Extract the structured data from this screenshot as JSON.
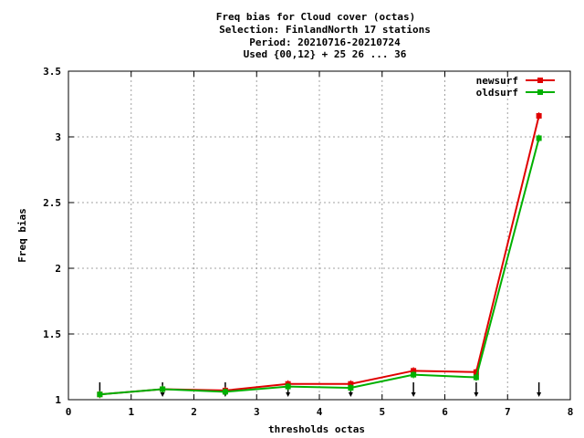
{
  "chart_data": {
    "type": "line",
    "title_lines": [
      "Freq bias  for Cloud cover (octas)",
      "Selection: FinlandNorth     17 stations",
      "Period: 20210716-20210724",
      "Used {00,12} + 25 26 ... 36"
    ],
    "xlabel": "thresholds octas",
    "ylabel": "Freq bias",
    "xlim": [
      0,
      8
    ],
    "ylim": [
      1,
      3.5
    ],
    "x_ticks": [
      0,
      1,
      2,
      3,
      4,
      5,
      6,
      7,
      8
    ],
    "y_ticks": [
      1,
      1.5,
      2,
      2.5,
      3,
      3.5
    ],
    "x_tick_labels": [
      "0",
      "1",
      "2",
      "3",
      "4",
      "5",
      "6",
      "7",
      "8"
    ],
    "y_tick_labels": [
      "1",
      "1.5",
      "2",
      "2.5",
      "3",
      "3.5"
    ],
    "grid": true,
    "legend_position": "top-right",
    "x": [
      0.5,
      1.5,
      2.5,
      3.5,
      4.5,
      5.5,
      6.5,
      7.5
    ],
    "series": [
      {
        "name": "newsurf",
        "color": "#e00000",
        "values": [
          1.04,
          1.08,
          1.07,
          1.12,
          1.12,
          1.22,
          1.21,
          3.16
        ]
      },
      {
        "name": "oldsurf",
        "color": "#00b000",
        "values": [
          1.04,
          1.08,
          1.06,
          1.1,
          1.09,
          1.19,
          1.17,
          2.99
        ]
      }
    ],
    "arrows": {
      "x": [
        0.5,
        1.5,
        2.5,
        3.5,
        4.5,
        5.5,
        6.5,
        7.5
      ],
      "color": "#000000"
    }
  }
}
